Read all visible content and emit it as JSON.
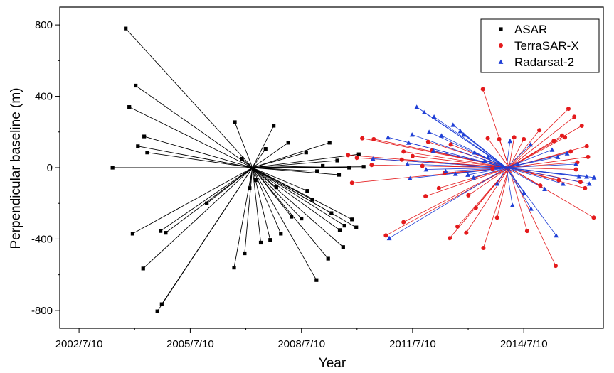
{
  "chart_data": {
    "type": "scatter",
    "title": "",
    "xlabel": "Year",
    "ylabel": "Perpendicular baseline (m)",
    "xlim": [
      "2002-01-01",
      "2016-09-01"
    ],
    "ylim": [
      -900,
      900
    ],
    "x_ticks": [
      "2002-07-10",
      "2005-07-10",
      "2008-07-10",
      "2011-07-10",
      "2014-07-10"
    ],
    "x_tick_labels": [
      "2002/7/10",
      "2005/7/10",
      "2008/7/10",
      "2011/7/10",
      "2014/7/10"
    ],
    "y_ticks": [
      800,
      400,
      0,
      -400,
      -800
    ],
    "y_tick_labels": [
      "800",
      "400",
      "0",
      "-400",
      "-800"
    ],
    "legend_position": "top-right",
    "grid": false,
    "series": [
      {
        "name": "ASAR",
        "marker": "square",
        "color": "#000000",
        "master": [
          "2007-03-15",
          0
        ],
        "points": [
          [
            "2003-06-05",
            0
          ],
          [
            "2003-10-13",
            780
          ],
          [
            "2004-01-19",
            460
          ],
          [
            "2003-11-17",
            340
          ],
          [
            "2004-04-12",
            175
          ],
          [
            "2004-02-10",
            120
          ],
          [
            "2004-05-12",
            85
          ],
          [
            "2003-12-20",
            -370
          ],
          [
            "2004-04-02",
            -565
          ],
          [
            "2004-09-20",
            -355
          ],
          [
            "2004-11-10",
            -365
          ],
          [
            "2004-10-02",
            -765
          ],
          [
            "2004-08-20",
            -805
          ],
          [
            "2005-12-20",
            -200
          ],
          [
            "2006-09-22",
            255
          ],
          [
            "2006-12-02",
            50
          ],
          [
            "2007-10-10",
            235
          ],
          [
            "2007-07-22",
            105
          ],
          [
            "2008-03-02",
            140
          ],
          [
            "2008-08-25",
            85
          ],
          [
            "2009-04-13",
            140
          ],
          [
            "2009-02-05",
            10
          ],
          [
            "2009-06-28",
            40
          ],
          [
            "2009-10-23",
            0
          ],
          [
            "2010-01-26",
            75
          ],
          [
            "2010-03-15",
            5
          ],
          [
            "2008-12-11",
            -20
          ],
          [
            "2009-07-15",
            -40
          ],
          [
            "2007-04-15",
            -70
          ],
          [
            "2007-02-15",
            -115
          ],
          [
            "2007-11-05",
            -110
          ],
          [
            "2008-10-25",
            -180
          ],
          [
            "2008-09-05",
            -130
          ],
          [
            "2009-05-01",
            -255
          ],
          [
            "2010-01-01",
            -335
          ],
          [
            "2009-11-20",
            -290
          ],
          [
            "2009-09-07",
            -325
          ],
          [
            "2009-07-22",
            -350
          ],
          [
            "2009-08-25",
            -445
          ],
          [
            "2009-03-30",
            -510
          ],
          [
            "2008-04-02",
            -275
          ],
          [
            "2008-07-10",
            -285
          ],
          [
            "2007-12-20",
            -370
          ],
          [
            "2007-09-06",
            -405
          ],
          [
            "2007-06-05",
            -420
          ],
          [
            "2006-12-28",
            -480
          ],
          [
            "2006-09-15",
            -560
          ],
          [
            "2008-12-05",
            -630
          ]
        ]
      },
      {
        "name": "TerraSAR-X",
        "marker": "circle",
        "color": "#e41a1c",
        "master": [
          "2014-02-15",
          0
        ],
        "points": [
          [
            "2009-10-13",
            70
          ],
          [
            "2010-03-01",
            165
          ],
          [
            "2010-01-07",
            55
          ],
          [
            "2010-06-02",
            15
          ],
          [
            "2009-11-20",
            -85
          ],
          [
            "2010-06-22",
            160
          ],
          [
            "2011-04-12",
            90
          ],
          [
            "2011-07-10",
            65
          ],
          [
            "2011-03-26",
            45
          ],
          [
            "2011-12-11",
            145
          ],
          [
            "2011-10-15",
            10
          ],
          [
            "2012-07-20",
            130
          ],
          [
            "2012-01-17",
            95
          ],
          [
            "2012-05-20",
            -30
          ],
          [
            "2013-06-02",
            440
          ],
          [
            "2013-07-20",
            165
          ],
          [
            "2013-11-10",
            160
          ],
          [
            "2014-07-10",
            160
          ],
          [
            "2014-12-11",
            210
          ],
          [
            "2015-05-01",
            150
          ],
          [
            "2015-09-23",
            330
          ],
          [
            "2015-11-20",
            285
          ],
          [
            "2016-02-02",
            235
          ],
          [
            "2016-03-22",
            120
          ],
          [
            "2015-10-15",
            90
          ],
          [
            "2015-12-20",
            30
          ],
          [
            "2016-04-03",
            60
          ],
          [
            "2016-03-05",
            -115
          ],
          [
            "2016-05-29",
            -280
          ],
          [
            "2015-06-20",
            -70
          ],
          [
            "2014-12-20",
            -100
          ],
          [
            "2014-08-12",
            -355
          ],
          [
            "2015-05-20",
            -550
          ],
          [
            "2013-10-20",
            -280
          ],
          [
            "2013-01-10",
            -155
          ],
          [
            "2013-03-25",
            -225
          ],
          [
            "2012-09-25",
            -330
          ],
          [
            "2012-07-10",
            -395
          ],
          [
            "2012-12-20",
            -365
          ],
          [
            "2013-06-07",
            -450
          ],
          [
            "2011-04-12",
            -305
          ],
          [
            "2010-10-20",
            -380
          ],
          [
            "2011-11-15",
            -160
          ],
          [
            "2012-03-25",
            -115
          ],
          [
            "2013-09-05",
            -5
          ],
          [
            "2014-04-06",
            170
          ],
          [
            "2015-07-22",
            180
          ],
          [
            "2015-08-20",
            170
          ],
          [
            "2015-12-07",
            -10
          ],
          [
            "2016-01-20",
            -80
          ]
        ]
      },
      {
        "name": "Radarsat-2",
        "marker": "triangle",
        "color": "#1f3fd6",
        "master": [
          "2014-01-20",
          0
        ],
        "points": [
          [
            "2011-08-20",
            340
          ],
          [
            "2011-11-01",
            310
          ],
          [
            "2012-02-07",
            285
          ],
          [
            "2012-08-12",
            240
          ],
          [
            "2012-10-23",
            205
          ],
          [
            "2012-11-25",
            185
          ],
          [
            "2011-07-05",
            185
          ],
          [
            "2012-04-20",
            180
          ],
          [
            "2011-12-20",
            200
          ],
          [
            "2010-11-11",
            170
          ],
          [
            "2011-06-01",
            140
          ],
          [
            "2012-02-01",
            95
          ],
          [
            "2013-03-12",
            85
          ],
          [
            "2010-06-15",
            50
          ],
          [
            "2011-05-20",
            20
          ],
          [
            "2011-11-20",
            -10
          ],
          [
            "2012-06-01",
            -20
          ],
          [
            "2013-01-05",
            -40
          ],
          [
            "2013-06-20",
            40
          ],
          [
            "2014-02-25",
            150
          ],
          [
            "2014-09-15",
            130
          ],
          [
            "2015-04-15",
            100
          ],
          [
            "2015-12-05",
            20
          ],
          [
            "2016-01-05",
            -50
          ],
          [
            "2016-03-20",
            -50
          ],
          [
            "2016-04-15",
            -90
          ],
          [
            "2015-08-02",
            -90
          ],
          [
            "2015-02-01",
            -120
          ],
          [
            "2014-09-20",
            -230
          ],
          [
            "2015-05-25",
            -380
          ],
          [
            "2014-07-12",
            -140
          ],
          [
            "2013-10-20",
            -90
          ],
          [
            "2014-03-20",
            -210
          ],
          [
            "2013-03-02",
            -55
          ],
          [
            "2011-06-15",
            -60
          ],
          [
            "2010-11-22",
            -395
          ],
          [
            "2012-09-05",
            -35
          ],
          [
            "2013-07-25",
            60
          ],
          [
            "2014-05-11",
            20
          ],
          [
            "2015-06-10",
            60
          ],
          [
            "2015-09-10",
            80
          ],
          [
            "2016-06-02",
            -55
          ]
        ]
      }
    ]
  }
}
